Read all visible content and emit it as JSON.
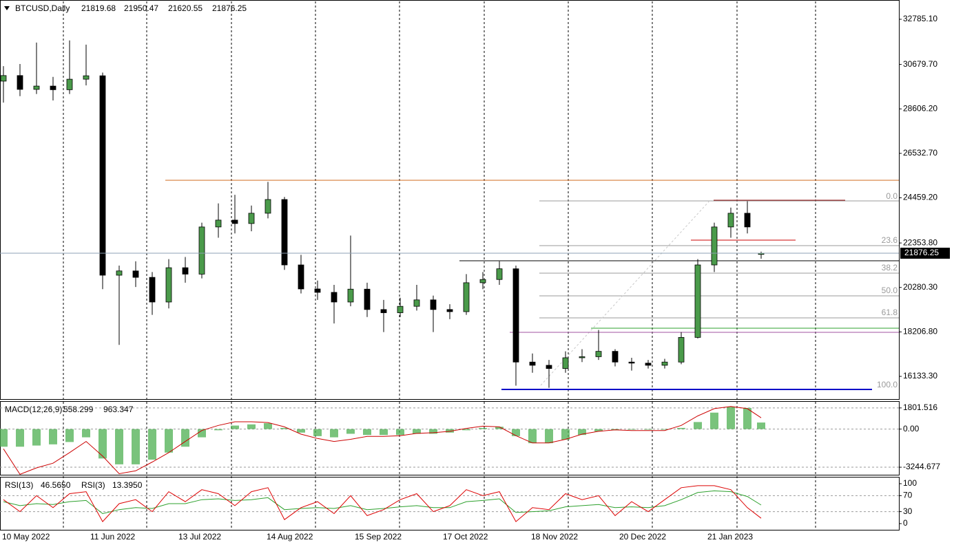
{
  "chart_data": [
    {
      "type": "candlestick",
      "title": "BTCUSD,Daily",
      "x": [
        "2022-05-10",
        "2022-05-16",
        "2022-05-22",
        "2022-05-28",
        "2022-06-03",
        "2022-06-09",
        "2022-06-15",
        "2022-06-21",
        "2022-06-27",
        "2022-07-03",
        "2022-07-09",
        "2022-07-15",
        "2022-07-21",
        "2022-07-27",
        "2022-08-02",
        "2022-08-08",
        "2022-08-14",
        "2022-08-20",
        "2022-08-26",
        "2022-09-01",
        "2022-09-07",
        "2022-09-13",
        "2022-09-19",
        "2022-09-25",
        "2022-10-01",
        "2022-10-07",
        "2022-10-13",
        "2022-10-19",
        "2022-10-25",
        "2022-10-31",
        "2022-11-06",
        "2022-11-12",
        "2022-11-18",
        "2022-11-24",
        "2022-11-30",
        "2022-12-06",
        "2022-12-12",
        "2022-12-18",
        "2022-12-24",
        "2022-12-30",
        "2023-01-05",
        "2023-01-11",
        "2023-01-17",
        "2023-01-23",
        "2023-01-29",
        "2023-02-04",
        "2023-02-09"
      ],
      "open": [
        29900,
        30160,
        29515,
        29670,
        29500,
        29990,
        30150,
        20850,
        21050,
        20750,
        19600,
        21200,
        20900,
        23100,
        23420,
        23260,
        23740,
        24380,
        21330,
        20210,
        20050,
        19600,
        20200,
        19250,
        19100,
        19400,
        19700,
        19250,
        19150,
        20500,
        20650,
        21150,
        16800,
        16650,
        16500,
        17000,
        17050,
        17300,
        16800,
        16750,
        16650,
        16800,
        17950,
        21330,
        23100,
        23740,
        21819.68
      ],
      "high": [
        30600,
        30700,
        31700,
        30100,
        31800,
        31600,
        30300,
        21300,
        21500,
        21000,
        21600,
        21700,
        23300,
        24200,
        24600,
        24100,
        25200,
        24500,
        21800,
        20600,
        20400,
        22700,
        20500,
        19700,
        19800,
        20400,
        19900,
        19500,
        20900,
        21000,
        21500,
        21300,
        17200,
        16900,
        17300,
        17400,
        18300,
        17400,
        17000,
        16900,
        16950,
        18200,
        21600,
        23300,
        24000,
        24300,
        21950.47
      ],
      "low": [
        28900,
        29200,
        29300,
        29000,
        29300,
        29700,
        20200,
        17600,
        20300,
        19000,
        19300,
        20500,
        20700,
        22600,
        22800,
        22900,
        23500,
        21100,
        20000,
        19700,
        18600,
        19400,
        18900,
        18200,
        18900,
        19200,
        18200,
        18800,
        19000,
        20200,
        20400,
        15700,
        16300,
        15600,
        16300,
        16800,
        16900,
        16600,
        16400,
        16500,
        16500,
        16700,
        17900,
        21000,
        22600,
        22800,
        21620.55
      ],
      "close": [
        30160,
        29515,
        29670,
        29500,
        29990,
        30150,
        20850,
        21050,
        20750,
        19600,
        21200,
        20900,
        23100,
        23420,
        23260,
        23740,
        24380,
        21330,
        20210,
        20050,
        19600,
        20200,
        19250,
        19100,
        19400,
        19700,
        19250,
        19150,
        20500,
        20650,
        21150,
        16800,
        16650,
        16500,
        17000,
        17050,
        17300,
        16800,
        16750,
        16650,
        16800,
        17950,
        21330,
        23100,
        23740,
        23100,
        21876.25
      ],
      "up_color": "#4a9a4a",
      "down_color": "#000000",
      "ylim": [
        15074.5,
        33619.3
      ],
      "yticks": [
        {
          "value": 32785.1,
          "label": "32785.10"
        },
        {
          "value": 30679.7,
          "label": "30679.70"
        },
        {
          "value": 28606.2,
          "label": "28606.20"
        },
        {
          "value": 26532.7,
          "label": "26532.70"
        },
        {
          "value": 24459.2,
          "label": "24459.20"
        },
        {
          "value": 22353.8,
          "label": "22353.80"
        },
        {
          "value": 20280.3,
          "label": "20280.30"
        },
        {
          "value": 18206.8,
          "label": "18206.80"
        },
        {
          "value": 16133.3,
          "label": "16133.30"
        }
      ],
      "xticks": [
        {
          "value": "2022-05-10",
          "label": "10 May 2022"
        },
        {
          "value": "2022-06-11",
          "label": "11 Jun 2022"
        },
        {
          "value": "2022-07-13",
          "label": "13 Jul 2022"
        },
        {
          "value": "2022-08-14",
          "label": "14 Aug 2022"
        },
        {
          "value": "2022-09-15",
          "label": "15 Sep 2022"
        },
        {
          "value": "2022-10-17",
          "label": "17 Oct 2022"
        },
        {
          "value": "2022-11-18",
          "label": "18 Nov 2022"
        },
        {
          "value": "2022-12-20",
          "label": "20 Dec 2022"
        },
        {
          "value": "2023-01-21",
          "label": "21 Jan 2023"
        }
      ],
      "annotations": [
        "0.0",
        "23.6",
        "38.2",
        "50.0",
        "61.8",
        "100.0"
      ]
    },
    {
      "type": "macd",
      "title": "MACD(12,26,9)",
      "series": [
        {
          "color": "#4caf50",
          "values": [
            -1500,
            -1500,
            -1400,
            -1300,
            -1100,
            -700,
            -2500,
            -3000,
            -3000,
            -2600,
            -2000,
            -1500,
            -700,
            -100,
            300,
            400,
            500,
            100,
            -300,
            -600,
            -700,
            -400,
            -500,
            -500,
            -500,
            -400,
            -400,
            -300,
            -100,
            100,
            200,
            -600,
            -1200,
            -1200,
            -900,
            -500,
            -200,
            -100,
            -50,
            -50,
            -50,
            100,
            600,
            1400,
            1900,
            1800,
            558.299
          ]
        },
        {
          "color": "#cc0000",
          "values": [
            -1680,
            -3850,
            -3300,
            -2900,
            -2000,
            -1050,
            -2300,
            -3800,
            -3550,
            -2800,
            -2000,
            -1050,
            -120,
            310,
            620,
            620,
            560,
            190,
            -430,
            -800,
            -1050,
            -870,
            -620,
            -620,
            -560,
            -370,
            -310,
            -190,
            60,
            250,
            190,
            -560,
            -1180,
            -1180,
            -870,
            -430,
            -190,
            -60,
            -120,
            -120,
            -120,
            310,
            1120,
            1740,
            1930,
            1740,
            963.347
          ]
        }
      ],
      "ylim": [
        -3886,
        2320
      ],
      "yticks": [
        1801.516,
        {
          "value": 0,
          "label": "0.00"
        },
        -3244.677
      ]
    },
    {
      "type": "line",
      "series": [
        {
          "name": "RSI(13)",
          "color": "#2ca02c",
          "values": [
            55,
            45,
            50,
            48,
            55,
            58,
            25,
            35,
            40,
            38,
            50,
            50,
            60,
            62,
            58,
            60,
            65,
            35,
            38,
            40,
            38,
            45,
            35,
            38,
            42,
            45,
            40,
            40,
            55,
            58,
            62,
            28,
            30,
            32,
            42,
            45,
            48,
            40,
            42,
            40,
            45,
            60,
            78,
            82,
            80,
            68,
            46.565
          ],
          "value_labels": [
            null,
            null,
            null,
            null,
            null,
            null,
            null,
            null,
            null,
            null,
            null,
            null,
            null,
            null,
            null,
            null,
            null,
            null,
            null,
            null,
            null,
            null,
            null,
            null,
            null,
            null,
            null,
            null,
            null,
            null,
            null,
            null,
            null,
            null,
            null,
            null,
            null,
            null,
            null,
            null,
            null,
            null,
            null,
            null,
            null,
            null,
            "46.5650"
          ]
        },
        {
          "name": "RSI(3)",
          "color": "#dd0000",
          "values": [
            60,
            30,
            70,
            40,
            75,
            80,
            5,
            50,
            60,
            30,
            80,
            55,
            85,
            75,
            45,
            80,
            90,
            10,
            40,
            55,
            25,
            70,
            20,
            35,
            60,
            75,
            30,
            45,
            85,
            70,
            80,
            5,
            40,
            35,
            75,
            60,
            70,
            20,
            55,
            30,
            60,
            90,
            95,
            95,
            85,
            40,
            13.395
          ],
          "value_labels": [
            null,
            null,
            null,
            null,
            null,
            null,
            null,
            null,
            null,
            null,
            null,
            null,
            null,
            null,
            null,
            null,
            null,
            null,
            null,
            null,
            null,
            null,
            null,
            null,
            null,
            null,
            null,
            null,
            null,
            null,
            null,
            null,
            null,
            null,
            null,
            null,
            null,
            null,
            null,
            null,
            null,
            null,
            null,
            null,
            null,
            null,
            "13.3950"
          ]
        }
      ],
      "ylim": [
        0,
        100
      ],
      "yticks": [
        0,
        30,
        70,
        100
      ]
    }
  ]
}
